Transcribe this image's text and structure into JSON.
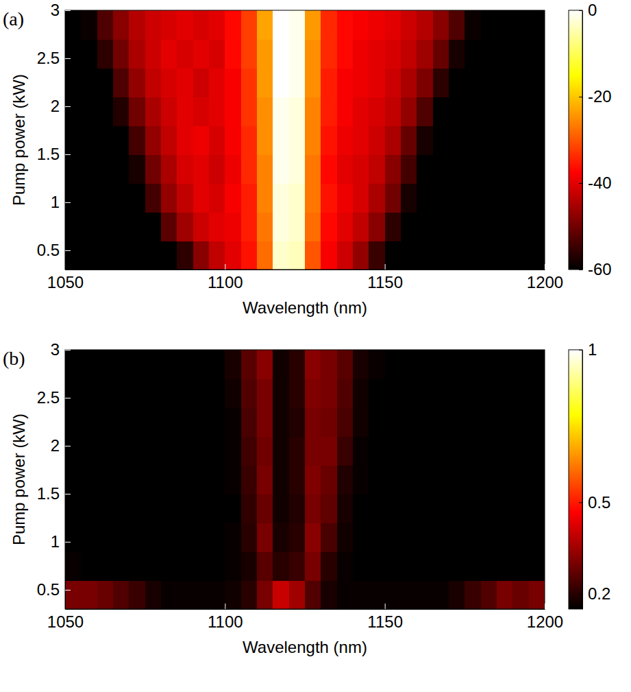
{
  "chart_data": [
    {
      "type": "heatmap",
      "title": "(a)",
      "x_label": "Wavelength (nm)",
      "y_label": "Pump power (kW)",
      "xlim": [
        1050,
        1200
      ],
      "xticks": [
        1050,
        1100,
        1150,
        1200
      ],
      "ylim": [
        0.3,
        3
      ],
      "yticks": [
        0.5,
        1,
        1.5,
        2,
        2.5,
        3
      ],
      "x": [
        1052.5,
        1057.5,
        1062.5,
        1067.5,
        1072.5,
        1077.5,
        1082.5,
        1087.5,
        1092.5,
        1097.5,
        1102.5,
        1107.5,
        1112.5,
        1117.5,
        1122.5,
        1127.5,
        1132.5,
        1137.5,
        1142.5,
        1147.5,
        1152.5,
        1157.5,
        1162.5,
        1167.5,
        1172.5,
        1177.5,
        1182.5,
        1187.5,
        1192.5,
        1197.5
      ],
      "y": [
        0.45,
        0.75,
        1.05,
        1.35,
        1.65,
        1.95,
        2.25,
        2.55,
        2.85
      ],
      "values": [
        [
          -65,
          -65,
          -65,
          -65,
          -65,
          -65,
          -62,
          -56,
          -48,
          -43,
          -40,
          -36,
          -28,
          -3,
          -4,
          -30,
          -38,
          -42,
          -47,
          -55,
          -63,
          -65,
          -65,
          -65,
          -65,
          -65,
          -65,
          -65,
          -65,
          -65
        ],
        [
          -65,
          -65,
          -65,
          -65,
          -65,
          -60,
          -52,
          -46,
          -42,
          -40,
          -39,
          -35,
          -27,
          -2,
          -3,
          -28,
          -37,
          -40,
          -43,
          -48,
          -56,
          -63,
          -65,
          -65,
          -65,
          -65,
          -65,
          -65,
          -65,
          -65
        ],
        [
          -65,
          -65,
          -65,
          -65,
          -62,
          -54,
          -47,
          -43,
          -40,
          -41,
          -38,
          -35,
          -26,
          -2,
          -3,
          -27,
          -36,
          -39,
          -41,
          -45,
          -50,
          -58,
          -64,
          -65,
          -65,
          -65,
          -65,
          -65,
          -65,
          -65
        ],
        [
          -65,
          -65,
          -65,
          -64,
          -58,
          -50,
          -45,
          -41,
          -40,
          -42,
          -39,
          -34,
          -26,
          -1,
          -2,
          -27,
          -37,
          -40,
          -41,
          -43,
          -48,
          -54,
          -62,
          -65,
          -65,
          -65,
          -65,
          -65,
          -65,
          -65
        ],
        [
          -65,
          -65,
          -65,
          -62,
          -54,
          -47,
          -43,
          -40,
          -39,
          -41,
          -38,
          -34,
          -25,
          -1,
          -2,
          -26,
          -36,
          -39,
          -40,
          -42,
          -45,
          -51,
          -58,
          -64,
          -65,
          -65,
          -65,
          -65,
          -65,
          -65
        ],
        [
          -65,
          -65,
          -63,
          -57,
          -50,
          -45,
          -42,
          -40,
          -41,
          -40,
          -38,
          -33,
          -25,
          -1,
          -2,
          -26,
          -35,
          -38,
          -40,
          -41,
          -43,
          -47,
          -53,
          -60,
          -65,
          -65,
          -65,
          -65,
          -65,
          -65
        ],
        [
          -65,
          -65,
          -60,
          -53,
          -47,
          -43,
          -41,
          -40,
          -42,
          -40,
          -38,
          -33,
          -24,
          0,
          -1,
          -25,
          -35,
          -38,
          -39,
          -40,
          -42,
          -45,
          -49,
          -56,
          -63,
          -65,
          -65,
          -65,
          -65,
          -65
        ],
        [
          -65,
          -63,
          -56,
          -50,
          -45,
          -42,
          -40,
          -41,
          -40,
          -41,
          -37,
          -32,
          -24,
          0,
          -1,
          -25,
          -34,
          -37,
          -39,
          -40,
          -41,
          -43,
          -46,
          -51,
          -58,
          -64,
          -65,
          -65,
          -65,
          -65
        ],
        [
          -65,
          -59,
          -53,
          -48,
          -44,
          -42,
          -41,
          -40,
          -41,
          -40,
          -37,
          -32,
          -23,
          0,
          -1,
          -24,
          -34,
          -37,
          -38,
          -39,
          -40,
          -42,
          -44,
          -48,
          -53,
          -59,
          -64,
          -65,
          -65,
          -65
        ]
      ],
      "colorbar": {
        "range": [
          -60,
          0
        ],
        "ticks": [
          0,
          -20,
          -40,
          -60
        ]
      }
    },
    {
      "type": "heatmap",
      "title": "(b)",
      "x_label": "Wavelength (nm)",
      "y_label": "Pump power (kW)",
      "xlim": [
        1050,
        1200
      ],
      "xticks": [
        1050,
        1100,
        1150,
        1200
      ],
      "ylim": [
        0.3,
        3
      ],
      "yticks": [
        0.5,
        1,
        1.5,
        2,
        2.5,
        3
      ],
      "x": [
        1052.5,
        1057.5,
        1062.5,
        1067.5,
        1072.5,
        1077.5,
        1082.5,
        1087.5,
        1092.5,
        1097.5,
        1102.5,
        1107.5,
        1112.5,
        1117.5,
        1122.5,
        1127.5,
        1132.5,
        1137.5,
        1142.5,
        1147.5,
        1152.5,
        1157.5,
        1162.5,
        1167.5,
        1172.5,
        1177.5,
        1182.5,
        1187.5,
        1192.5,
        1197.5
      ],
      "y": [
        0.45,
        0.75,
        1.05,
        1.35,
        1.65,
        1.95,
        2.25,
        2.55,
        2.85
      ],
      "values": [
        [
          0.3,
          0.3,
          0.28,
          0.25,
          0.22,
          0.18,
          0.16,
          0.16,
          0.16,
          0.16,
          0.17,
          0.2,
          0.3,
          0.4,
          0.35,
          0.25,
          0.18,
          0.16,
          0.16,
          0.16,
          0.16,
          0.16,
          0.16,
          0.16,
          0.18,
          0.22,
          0.25,
          0.3,
          0.28,
          0.3
        ],
        [
          0.16,
          0.15,
          0.15,
          0.15,
          0.15,
          0.15,
          0.15,
          0.15,
          0.15,
          0.15,
          0.16,
          0.18,
          0.26,
          0.2,
          0.22,
          0.3,
          0.2,
          0.16,
          0.15,
          0.15,
          0.15,
          0.15,
          0.15,
          0.15,
          0.15,
          0.15,
          0.15,
          0.15,
          0.15,
          0.15
        ],
        [
          0.15,
          0.15,
          0.15,
          0.15,
          0.15,
          0.15,
          0.15,
          0.15,
          0.15,
          0.15,
          0.16,
          0.2,
          0.3,
          0.18,
          0.2,
          0.32,
          0.24,
          0.17,
          0.15,
          0.15,
          0.15,
          0.15,
          0.15,
          0.15,
          0.15,
          0.15,
          0.15,
          0.15,
          0.15,
          0.15
        ],
        [
          0.15,
          0.15,
          0.15,
          0.15,
          0.15,
          0.15,
          0.15,
          0.15,
          0.15,
          0.15,
          0.15,
          0.21,
          0.28,
          0.17,
          0.19,
          0.3,
          0.27,
          0.18,
          0.15,
          0.15,
          0.15,
          0.15,
          0.15,
          0.15,
          0.15,
          0.15,
          0.15,
          0.15,
          0.15,
          0.15
        ],
        [
          0.15,
          0.15,
          0.15,
          0.15,
          0.15,
          0.15,
          0.15,
          0.15,
          0.15,
          0.15,
          0.16,
          0.22,
          0.3,
          0.17,
          0.2,
          0.31,
          0.28,
          0.19,
          0.16,
          0.15,
          0.15,
          0.15,
          0.15,
          0.15,
          0.15,
          0.15,
          0.15,
          0.15,
          0.15,
          0.15
        ],
        [
          0.15,
          0.15,
          0.15,
          0.15,
          0.15,
          0.15,
          0.15,
          0.15,
          0.15,
          0.15,
          0.16,
          0.23,
          0.29,
          0.17,
          0.2,
          0.3,
          0.3,
          0.22,
          0.16,
          0.15,
          0.15,
          0.15,
          0.15,
          0.15,
          0.15,
          0.15,
          0.15,
          0.15,
          0.15,
          0.15
        ],
        [
          0.15,
          0.15,
          0.15,
          0.15,
          0.15,
          0.15,
          0.15,
          0.15,
          0.15,
          0.15,
          0.16,
          0.24,
          0.3,
          0.17,
          0.19,
          0.3,
          0.29,
          0.24,
          0.17,
          0.15,
          0.15,
          0.15,
          0.15,
          0.15,
          0.15,
          0.15,
          0.15,
          0.15,
          0.15,
          0.15
        ],
        [
          0.15,
          0.15,
          0.15,
          0.15,
          0.15,
          0.15,
          0.15,
          0.15,
          0.15,
          0.15,
          0.17,
          0.25,
          0.3,
          0.17,
          0.2,
          0.31,
          0.3,
          0.25,
          0.17,
          0.15,
          0.15,
          0.15,
          0.15,
          0.15,
          0.15,
          0.15,
          0.15,
          0.15,
          0.15,
          0.15
        ],
        [
          0.15,
          0.15,
          0.15,
          0.15,
          0.15,
          0.15,
          0.15,
          0.15,
          0.15,
          0.15,
          0.18,
          0.26,
          0.32,
          0.17,
          0.2,
          0.32,
          0.3,
          0.26,
          0.18,
          0.16,
          0.15,
          0.15,
          0.15,
          0.15,
          0.15,
          0.15,
          0.15,
          0.15,
          0.15,
          0.15
        ]
      ],
      "colorbar": {
        "range": [
          0.15,
          1
        ],
        "ticks": [
          1,
          0.5,
          0.2
        ]
      }
    }
  ]
}
